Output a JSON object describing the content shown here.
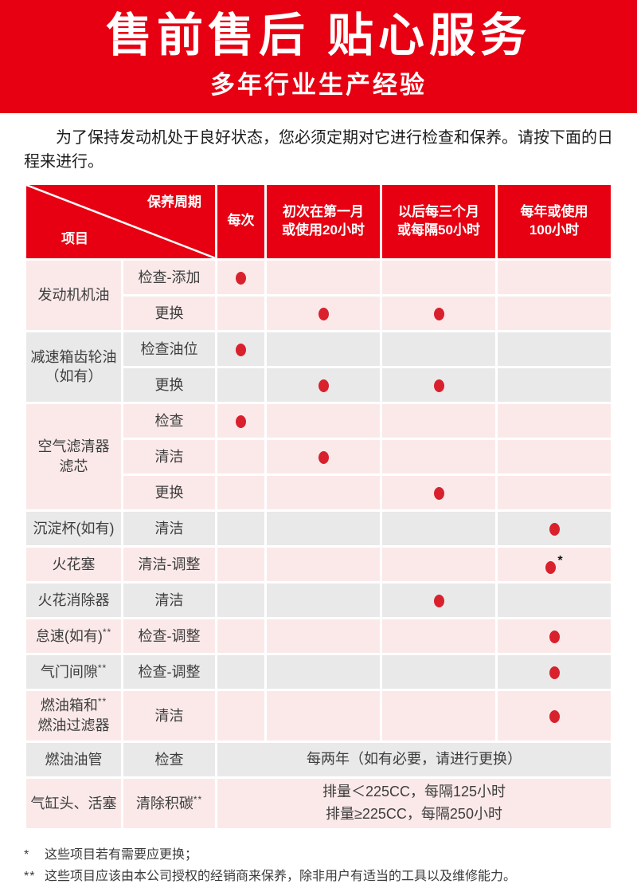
{
  "banner": {
    "title": "售前售后 贴心服务",
    "subtitle": "多年行业生产经验",
    "background_color": "#e60012"
  },
  "intro": "为了保持发动机处于良好状态，您必须定期对它进行检查和保养。请按下面的日程来进行。",
  "colors": {
    "header_red": "#e60012",
    "dot_red": "#d9212e",
    "row_pink": "#fbe9e9",
    "row_gray": "#e9e9e9"
  },
  "table": {
    "corner": {
      "top_right": "保养周期",
      "bottom_left": "项目"
    },
    "columns": [
      "每次",
      "初次在第一月\n或使用20小时",
      "以后每三个月\n或每隔50小时",
      "每年或使用\n100小时"
    ],
    "groups": [
      {
        "tone": "pink",
        "item_lines": [
          {
            "text": "发动机机油",
            "sup": ""
          }
        ],
        "rows": [
          {
            "action": "检查-添加",
            "action_sup": "",
            "marks": [
              "dot",
              "",
              "",
              ""
            ]
          },
          {
            "action": "更换",
            "action_sup": "",
            "marks": [
              "",
              "dot",
              "dot",
              ""
            ]
          }
        ]
      },
      {
        "tone": "gray",
        "item_lines": [
          {
            "text": "减速箱齿轮油",
            "sup": ""
          },
          {
            "text": "（如有）",
            "sup": ""
          }
        ],
        "rows": [
          {
            "action": "检查油位",
            "action_sup": "",
            "marks": [
              "dot",
              "",
              "",
              ""
            ]
          },
          {
            "action": "更换",
            "action_sup": "",
            "marks": [
              "",
              "dot",
              "dot",
              ""
            ]
          }
        ]
      },
      {
        "tone": "pink",
        "item_lines": [
          {
            "text": "空气滤清器",
            "sup": ""
          },
          {
            "text": "滤芯",
            "sup": ""
          }
        ],
        "rows": [
          {
            "action": "检查",
            "action_sup": "",
            "marks": [
              "dot",
              "",
              "",
              ""
            ]
          },
          {
            "action": "清洁",
            "action_sup": "",
            "marks": [
              "",
              "dot",
              "",
              ""
            ]
          },
          {
            "action": "更换",
            "action_sup": "",
            "marks": [
              "",
              "",
              "dot",
              ""
            ]
          }
        ]
      },
      {
        "tone": "gray",
        "item_lines": [
          {
            "text": "沉淀杯(如有)",
            "sup": ""
          }
        ],
        "rows": [
          {
            "action": "清洁",
            "action_sup": "",
            "marks": [
              "",
              "",
              "",
              "dot"
            ]
          }
        ]
      },
      {
        "tone": "pink",
        "item_lines": [
          {
            "text": "火花塞",
            "sup": ""
          }
        ],
        "rows": [
          {
            "action": "清洁-调整",
            "action_sup": "",
            "marks": [
              "",
              "",
              "",
              "dot*"
            ]
          }
        ]
      },
      {
        "tone": "gray",
        "item_lines": [
          {
            "text": "火花消除器",
            "sup": ""
          }
        ],
        "rows": [
          {
            "action": "清洁",
            "action_sup": "",
            "marks": [
              "",
              "",
              "dot",
              ""
            ]
          }
        ]
      },
      {
        "tone": "pink",
        "item_lines": [
          {
            "text": "怠速(如有)",
            "sup": "**"
          }
        ],
        "rows": [
          {
            "action": "检查-调整",
            "action_sup": "",
            "marks": [
              "",
              "",
              "",
              "dot"
            ]
          }
        ]
      },
      {
        "tone": "gray",
        "item_lines": [
          {
            "text": "气门间隙",
            "sup": "**"
          }
        ],
        "rows": [
          {
            "action": "检查-调整",
            "action_sup": "",
            "marks": [
              "",
              "",
              "",
              "dot"
            ]
          }
        ]
      },
      {
        "tone": "pink",
        "item_lines": [
          {
            "text": "燃油箱和",
            "sup": "**"
          },
          {
            "text": "燃油过滤器",
            "sup": ""
          }
        ],
        "rows": [
          {
            "action": "清洁",
            "action_sup": "",
            "marks": [
              "",
              "",
              "",
              "dot"
            ]
          }
        ]
      },
      {
        "tone": "gray",
        "item_lines": [
          {
            "text": "燃油油管",
            "sup": ""
          }
        ],
        "rows": [
          {
            "action": "检查",
            "action_sup": "",
            "span_text": "每两年（如有必要，请进行更换）"
          }
        ]
      },
      {
        "tone": "pink",
        "item_lines": [
          {
            "text": "气缸头、活塞",
            "sup": ""
          }
        ],
        "rows": [
          {
            "action": "清除积碳",
            "action_sup": "**",
            "span_text": "排量＜225CC，每隔125小时\n排量≥225CC，每隔250小时"
          }
        ]
      }
    ]
  },
  "footnotes": [
    {
      "marker": "*",
      "text": "这些项目若有需要应更换；"
    },
    {
      "marker": "**",
      "text": "这些项目应该由本公司授权的经销商来保养，除非用户有适当的工具以及维修能力。"
    }
  ]
}
